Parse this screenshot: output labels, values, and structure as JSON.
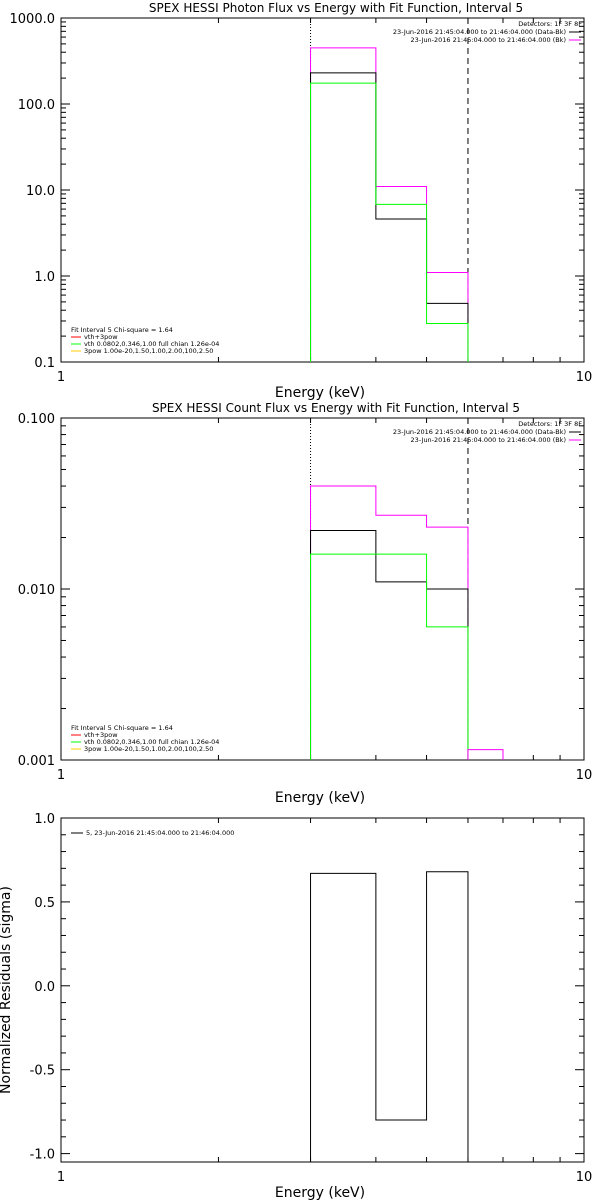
{
  "chart_data": [
    {
      "type": "line",
      "title": "SPEX HESSI Photon Flux vs Energy with Fit Function, Interval 5",
      "xlabel": "Energy (keV)",
      "ylabel": "",
      "xscale": "log",
      "yscale": "log",
      "xlim": [
        1,
        10
      ],
      "ylim": [
        0.1,
        1000
      ],
      "xticks": [
        "1",
        "10"
      ],
      "yticks": [
        "0.1",
        "1.0",
        "10.0",
        "100.0",
        "1000.0"
      ],
      "vlines": [
        {
          "x": 3.0,
          "style": "dotted"
        },
        {
          "x": 6.0,
          "style": "dashed"
        }
      ],
      "legend_right": {
        "lines": [
          "Detectors: 1F 3F 8F",
          "23-Jun-2016 21:45:04.000 to 21:46:04.000 (Data-Bk)",
          "23-Jun-2016 21:45:04.000 to 21:46:04.000 (Bk)"
        ],
        "colors": [
          "#000000",
          "#ff00ff"
        ]
      },
      "legend_left": {
        "lines": [
          "Fit Interval 5   Chi-square = 1.64",
          "vth+3pow",
          "vth 0.0802,0.346,1.00  full chian 1.26e-04",
          "3pow 1.00e-20,1.50,1.00,2.00,100,2.50"
        ],
        "colors": [
          "#ff0000",
          "#00ff00",
          "#ffcc00"
        ]
      },
      "series": [
        {
          "color": "#ff00ff",
          "edges": [
            3.0,
            4.0,
            5.0,
            6.0
          ],
          "values": [
            450,
            11,
            1.1
          ]
        },
        {
          "color": "#000000",
          "edges": [
            3.0,
            4.0,
            5.0,
            6.0
          ],
          "values": [
            230,
            4.6,
            0.48
          ]
        },
        {
          "color": "#00ff00",
          "edges": [
            3.0,
            4.0,
            5.0,
            6.0
          ],
          "values": [
            175,
            6.8,
            0.28
          ]
        }
      ]
    },
    {
      "type": "line",
      "title": "SPEX HESSI Count Flux vs Energy with Fit Function, Interval 5",
      "xlabel": "Energy (keV)",
      "ylabel": "",
      "xscale": "log",
      "yscale": "log",
      "xlim": [
        1,
        10
      ],
      "ylim": [
        0.001,
        0.1
      ],
      "xticks": [
        "1",
        "10"
      ],
      "yticks": [
        "0.001",
        "0.010",
        "0.100"
      ],
      "vlines": [
        {
          "x": 3.0,
          "style": "dotted"
        },
        {
          "x": 6.0,
          "style": "dashed"
        }
      ],
      "legend_right": {
        "lines": [
          "Detectors: 1F 3F 8F",
          "23-Jun-2016 21:45:04.000 to 21:46:04.000 (Data-Bk)",
          "23-Jun-2016 21:45:04.000 to 21:46:04.000 (Bk)"
        ],
        "colors": [
          "#000000",
          "#ff00ff"
        ]
      },
      "legend_left": {
        "lines": [
          "Fit Interval 5   Chi-square = 1.64",
          "vth+3pow",
          "vth 0.0802,0.346,1.00  full chian 1.26e-04",
          "3pow 1.00e-20,1.50,1.00,2.00,100,2.50"
        ],
        "colors": [
          "#ff0000",
          "#00ff00",
          "#ffcc00"
        ]
      },
      "series": [
        {
          "color": "#ff00ff",
          "edges": [
            3.0,
            4.0,
            5.0,
            6.0
          ],
          "values": [
            0.04,
            0.027,
            0.023
          ]
        },
        {
          "color": "#000000",
          "edges": [
            3.0,
            4.0,
            5.0,
            6.0
          ],
          "values": [
            0.022,
            0.011,
            0.01
          ]
        },
        {
          "color": "#00ff00",
          "edges": [
            3.0,
            4.0,
            5.0,
            6.0
          ],
          "values": [
            0.016,
            0.016,
            0.006
          ]
        },
        {
          "color": "#ff00ff",
          "edges": [
            6.0,
            7.0
          ],
          "values": [
            0.00115
          ]
        }
      ]
    },
    {
      "type": "line",
      "title": "",
      "xlabel": "Energy (keV)",
      "ylabel": "Normalized Residuals (sigma)",
      "xscale": "log",
      "yscale": "linear",
      "xlim": [
        1,
        10
      ],
      "ylim": [
        -1.05,
        1.0
      ],
      "xticks": [
        "1",
        "10"
      ],
      "yticks": [
        "-1.0",
        "-0.5",
        "0.0",
        "0.5",
        "1.0"
      ],
      "legend_right": null,
      "legend_left": null,
      "legend_top": {
        "text": "5, 23-Jun-2016 21:45:04.000 to 21:46:04.000",
        "color": "#000000"
      },
      "series": [
        {
          "color": "#000000",
          "edges": [
            3.0,
            4.0,
            5.0,
            6.0
          ],
          "values": [
            0.67,
            -0.8,
            0.68
          ]
        }
      ]
    }
  ]
}
